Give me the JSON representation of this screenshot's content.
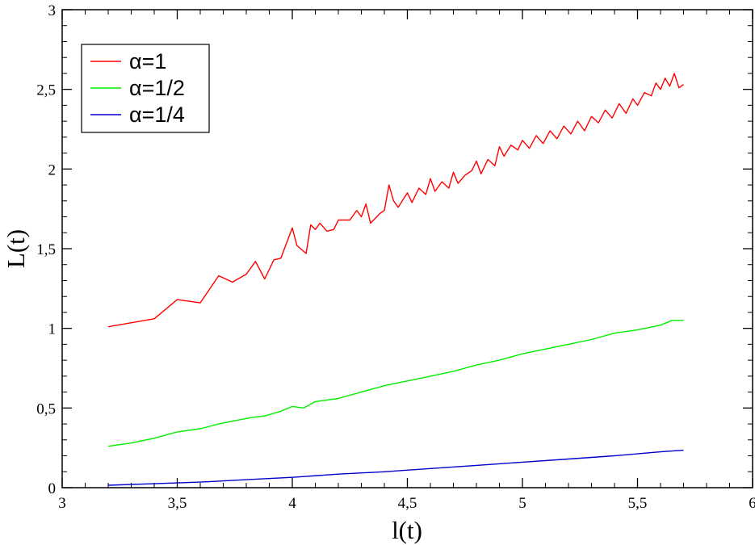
{
  "chart_data": {
    "type": "line",
    "title": "",
    "xlabel": "l(t)",
    "ylabel": "L(t)",
    "xlim": [
      3,
      6
    ],
    "ylim": [
      0,
      3
    ],
    "x_ticks": [
      3,
      3.5,
      4,
      4.5,
      5,
      5.5,
      6
    ],
    "x_tick_labels": [
      "3",
      "3,5",
      "4",
      "4,5",
      "5",
      "5,5",
      "6"
    ],
    "y_ticks": [
      0,
      0.5,
      1,
      1.5,
      2,
      2.5,
      3
    ],
    "y_tick_labels": [
      "0",
      "0,5",
      "1",
      "1,5",
      "2",
      "2,5",
      "3"
    ],
    "grid": false,
    "legend_position": "top-left",
    "series": [
      {
        "name": "α=1",
        "color": "#ff0000",
        "points": [
          [
            3.2,
            1.01
          ],
          [
            3.4,
            1.06
          ],
          [
            3.5,
            1.18
          ],
          [
            3.6,
            1.16
          ],
          [
            3.68,
            1.33
          ],
          [
            3.74,
            1.29
          ],
          [
            3.8,
            1.34
          ],
          [
            3.84,
            1.42
          ],
          [
            3.88,
            1.31
          ],
          [
            3.92,
            1.43
          ],
          [
            3.95,
            1.44
          ],
          [
            4.0,
            1.63
          ],
          [
            4.02,
            1.52
          ],
          [
            4.06,
            1.47
          ],
          [
            4.08,
            1.65
          ],
          [
            4.1,
            1.62
          ],
          [
            4.12,
            1.66
          ],
          [
            4.15,
            1.61
          ],
          [
            4.18,
            1.62
          ],
          [
            4.2,
            1.68
          ],
          [
            4.25,
            1.68
          ],
          [
            4.28,
            1.74
          ],
          [
            4.3,
            1.7
          ],
          [
            4.32,
            1.78
          ],
          [
            4.34,
            1.66
          ],
          [
            4.38,
            1.72
          ],
          [
            4.4,
            1.74
          ],
          [
            4.42,
            1.9
          ],
          [
            4.44,
            1.8
          ],
          [
            4.46,
            1.76
          ],
          [
            4.5,
            1.85
          ],
          [
            4.52,
            1.79
          ],
          [
            4.55,
            1.88
          ],
          [
            4.58,
            1.84
          ],
          [
            4.6,
            1.94
          ],
          [
            4.62,
            1.86
          ],
          [
            4.65,
            1.92
          ],
          [
            4.68,
            1.88
          ],
          [
            4.7,
            1.98
          ],
          [
            4.72,
            1.91
          ],
          [
            4.75,
            1.96
          ],
          [
            4.78,
            1.99
          ],
          [
            4.8,
            2.05
          ],
          [
            4.82,
            1.97
          ],
          [
            4.85,
            2.06
          ],
          [
            4.88,
            2.02
          ],
          [
            4.9,
            2.14
          ],
          [
            4.92,
            2.08
          ],
          [
            4.95,
            2.15
          ],
          [
            4.98,
            2.12
          ],
          [
            5.0,
            2.18
          ],
          [
            5.03,
            2.13
          ],
          [
            5.06,
            2.21
          ],
          [
            5.09,
            2.16
          ],
          [
            5.12,
            2.24
          ],
          [
            5.15,
            2.19
          ],
          [
            5.18,
            2.27
          ],
          [
            5.21,
            2.22
          ],
          [
            5.24,
            2.3
          ],
          [
            5.27,
            2.24
          ],
          [
            5.3,
            2.33
          ],
          [
            5.33,
            2.29
          ],
          [
            5.36,
            2.37
          ],
          [
            5.39,
            2.32
          ],
          [
            5.42,
            2.41
          ],
          [
            5.45,
            2.35
          ],
          [
            5.48,
            2.44
          ],
          [
            5.5,
            2.4
          ],
          [
            5.53,
            2.48
          ],
          [
            5.56,
            2.46
          ],
          [
            5.58,
            2.54
          ],
          [
            5.6,
            2.5
          ],
          [
            5.62,
            2.57
          ],
          [
            5.64,
            2.52
          ],
          [
            5.66,
            2.6
          ],
          [
            5.68,
            2.51
          ],
          [
            5.7,
            2.53
          ]
        ]
      },
      {
        "name": "α=1/2",
        "color": "#00ee00",
        "points": [
          [
            3.2,
            0.26
          ],
          [
            3.3,
            0.28
          ],
          [
            3.4,
            0.31
          ],
          [
            3.5,
            0.35
          ],
          [
            3.6,
            0.37
          ],
          [
            3.68,
            0.4
          ],
          [
            3.75,
            0.42
          ],
          [
            3.82,
            0.44
          ],
          [
            3.88,
            0.45
          ],
          [
            3.95,
            0.48
          ],
          [
            4.0,
            0.51
          ],
          [
            4.05,
            0.5
          ],
          [
            4.1,
            0.54
          ],
          [
            4.2,
            0.56
          ],
          [
            4.3,
            0.6
          ],
          [
            4.4,
            0.64
          ],
          [
            4.5,
            0.67
          ],
          [
            4.6,
            0.7
          ],
          [
            4.7,
            0.73
          ],
          [
            4.8,
            0.77
          ],
          [
            4.9,
            0.8
          ],
          [
            5.0,
            0.84
          ],
          [
            5.1,
            0.87
          ],
          [
            5.2,
            0.9
          ],
          [
            5.3,
            0.93
          ],
          [
            5.4,
            0.97
          ],
          [
            5.5,
            0.99
          ],
          [
            5.6,
            1.02
          ],
          [
            5.65,
            1.05
          ],
          [
            5.7,
            1.05
          ]
        ]
      },
      {
        "name": "α=1/4",
        "color": "#0000cc",
        "points": [
          [
            3.2,
            0.015
          ],
          [
            3.4,
            0.025
          ],
          [
            3.6,
            0.035
          ],
          [
            3.8,
            0.05
          ],
          [
            4.0,
            0.065
          ],
          [
            4.2,
            0.085
          ],
          [
            4.4,
            0.1
          ],
          [
            4.6,
            0.12
          ],
          [
            4.8,
            0.14
          ],
          [
            5.0,
            0.16
          ],
          [
            5.2,
            0.18
          ],
          [
            5.4,
            0.2
          ],
          [
            5.6,
            0.225
          ],
          [
            5.7,
            0.235
          ]
        ]
      }
    ]
  }
}
